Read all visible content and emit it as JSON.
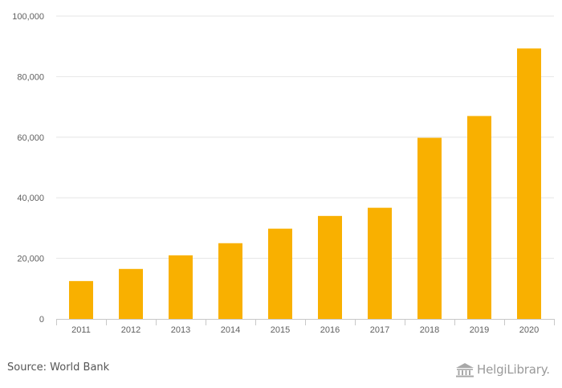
{
  "chart_data": {
    "type": "bar",
    "title": "",
    "xlabel": "",
    "ylabel": "",
    "categories": [
      "2011",
      "2012",
      "2013",
      "2014",
      "2015",
      "2016",
      "2017",
      "2018",
      "2019",
      "2020"
    ],
    "values": [
      12500,
      16500,
      21000,
      25000,
      29800,
      34000,
      36700,
      59800,
      67000,
      89300
    ],
    "ylim": [
      0,
      100000
    ],
    "yticks": [
      0,
      20000,
      40000,
      60000,
      80000,
      100000
    ],
    "ytick_labels": [
      "0",
      "20,000",
      "40,000",
      "60,000",
      "80,000",
      "100,000"
    ],
    "grid": true,
    "legend": "none",
    "bar_color": "#F9B000"
  },
  "footer": {
    "source": "Source: World Bank",
    "brand": "HelgiLibrary."
  },
  "icons": {
    "brand": "library-building-icon"
  }
}
